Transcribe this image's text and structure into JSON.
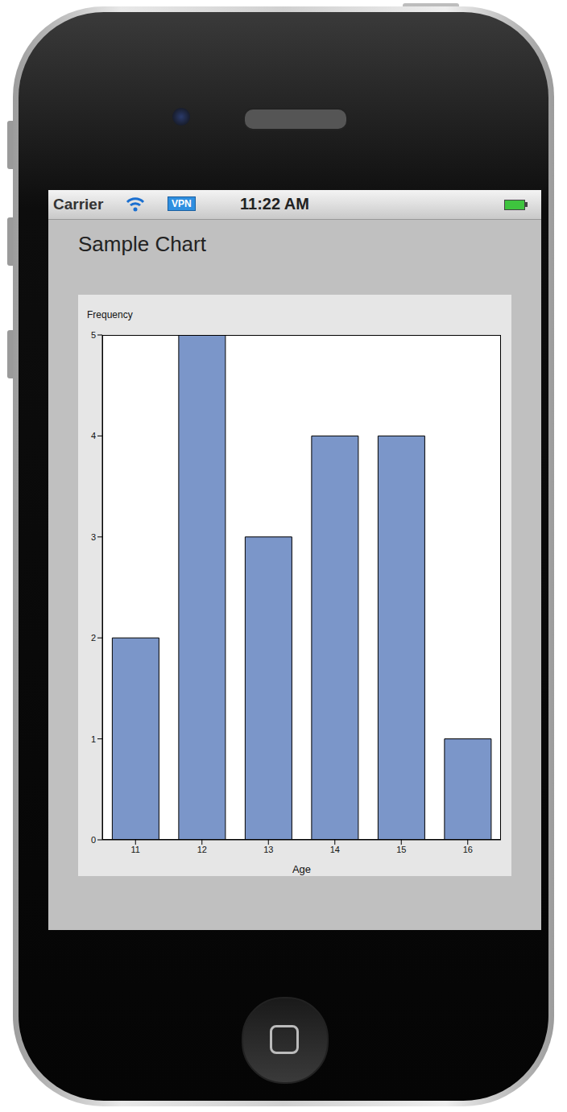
{
  "status_bar": {
    "carrier": "Carrier",
    "vpn": "VPN",
    "time": "11:22 AM"
  },
  "chart_data": {
    "type": "bar",
    "title": "Sample Chart",
    "x_label": "Age",
    "y_label": "Frequency",
    "categories": [
      "11",
      "12",
      "13",
      "14",
      "15",
      "16"
    ],
    "values": [
      2,
      5,
      3,
      4,
      4,
      1
    ],
    "color": "#7b96c9",
    "ylim": [
      0,
      5
    ],
    "yticks": [
      0,
      1,
      2,
      3,
      4,
      5
    ],
    "grid": false
  }
}
